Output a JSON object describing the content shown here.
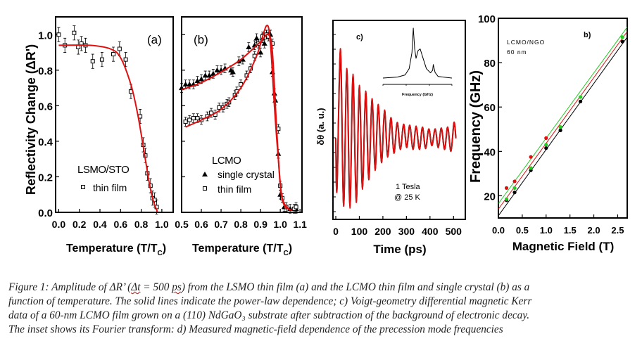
{
  "caption": {
    "line1_a": "Figure 1: Amplitude of ΔR’ (",
    "line1_dt": "Δt",
    "line1_b": " = 500 ",
    "line1_ps": "ps",
    "line1_c": ") from the LSMO thin film (a) and the LCMO thin film and single crystal (b) as a",
    "line2": "function of temperature. The solid lines indicate the power-law dependence; c) Voigt-geometry differential magnetic Kerr",
    "line3": "data of a 60-nm LCMO film grown on a (110) NdGaO₃ substrate after subtraction of the background of electronic decay.",
    "line4": "The inset shows its Fourier transform: d) Measured magnetic-field dependence of the precession mode frequencies"
  },
  "colors": {
    "fit": "#e01010",
    "data": "#000000",
    "green": "#22cc22",
    "red": "#e01010",
    "black": "#000000"
  },
  "chart_data": [
    {
      "type": "scatter",
      "panel_label": "(a)",
      "ylabel": "Reflectivity Change (ΔR')",
      "xlabel_main": "Temperature (T/T",
      "xlabel_sub": "C",
      "xlabel_end": ")",
      "annotation": "LSMO/STO",
      "xlim": [
        -0.03,
        1.11
      ],
      "ylim": [
        0.0,
        1.1
      ],
      "xticks": [
        "0.0",
        "0.2",
        "0.4",
        "0.6",
        "0.8",
        "1.0"
      ],
      "xtick_values": [
        0,
        0.2,
        0.4,
        0.6,
        0.8,
        1.0
      ],
      "yticks": [
        "0.0",
        "0.2",
        "0.4",
        "0.6",
        "0.8",
        "1.0"
      ],
      "ytick_values": [
        0,
        0.2,
        0.4,
        0.6,
        0.8,
        1.0
      ],
      "series": [
        {
          "name": "thin film",
          "marker": "open-square",
          "error_bar": 0.04,
          "x": [
            0.0,
            0.06,
            0.15,
            0.19,
            0.22,
            0.26,
            0.33,
            0.42,
            0.53,
            0.59,
            0.65,
            0.7,
            0.79,
            0.82,
            0.84,
            0.86,
            0.89,
            0.91,
            0.93,
            0.95
          ],
          "y": [
            1.0,
            0.94,
            1.01,
            0.93,
            0.95,
            0.94,
            0.85,
            0.86,
            0.89,
            0.92,
            0.86,
            0.68,
            0.54,
            0.38,
            0.32,
            0.22,
            0.15,
            0.08,
            0.07,
            0.03
          ]
        },
        {
          "fit": true,
          "x": [
            0,
            0.3,
            0.5,
            0.6,
            0.7,
            0.76,
            0.8,
            0.84,
            0.88,
            0.92,
            0.96
          ],
          "y": [
            0.94,
            0.94,
            0.92,
            0.87,
            0.72,
            0.57,
            0.44,
            0.3,
            0.16,
            0.06,
            0.0
          ]
        }
      ]
    },
    {
      "type": "scatter",
      "panel_label": "(b)",
      "xlabel_main": "Temperature (T/T",
      "xlabel_sub": "C",
      "xlabel_end": ")",
      "annotation": "LCMO",
      "xlim": [
        0.5,
        1.11
      ],
      "ylim": [
        0.0,
        1.1
      ],
      "xticks": [
        "0.5",
        "0.6",
        "0.7",
        "0.8",
        "0.9",
        "1.0",
        "1.1"
      ],
      "xtick_values": [
        0.5,
        0.6,
        0.7,
        0.8,
        0.9,
        1.0,
        1.1
      ],
      "ytick_values": [
        0,
        0.2,
        0.4,
        0.6,
        0.8,
        1.0
      ],
      "series": [
        {
          "name": "single crystal",
          "marker": "filled-triangle",
          "error_bar": 0.025,
          "x": [
            0.5,
            0.52,
            0.54,
            0.56,
            0.58,
            0.6,
            0.62,
            0.64,
            0.66,
            0.68,
            0.7,
            0.72,
            0.75,
            0.76,
            0.79,
            0.81,
            0.84,
            0.87,
            0.88,
            0.9,
            0.91,
            0.92,
            0.93,
            0.95,
            0.96,
            0.97,
            0.975,
            0.99,
            1.0,
            1.02,
            1.05,
            1.08
          ],
          "y": [
            0.7,
            0.72,
            0.72,
            0.72,
            0.74,
            0.75,
            0.77,
            0.77,
            0.78,
            0.8,
            0.8,
            0.81,
            0.8,
            0.79,
            0.85,
            0.86,
            0.93,
            0.94,
            0.98,
            0.9,
            0.98,
            0.95,
            1.0,
            1.0,
            0.79,
            0.67,
            0.63,
            0.33,
            0.1,
            0.03,
            0.02,
            0.02
          ]
        },
        {
          "name": "thin film",
          "marker": "open-square",
          "error_bar": 0.025,
          "x": [
            0.52,
            0.54,
            0.56,
            0.58,
            0.6,
            0.63,
            0.65,
            0.67,
            0.69,
            0.71,
            0.73,
            0.74,
            0.77,
            0.78,
            0.8,
            0.83,
            0.85,
            0.87,
            0.89,
            0.91,
            0.93,
            0.94,
            0.96,
            0.99,
            1.0,
            1.01,
            1.03,
            1.07,
            1.08
          ],
          "y": [
            0.51,
            0.52,
            0.53,
            0.53,
            0.52,
            0.54,
            0.56,
            0.55,
            0.59,
            0.59,
            0.61,
            0.62,
            0.66,
            0.68,
            0.72,
            0.77,
            0.81,
            0.88,
            0.95,
            0.99,
            1.0,
            0.99,
            0.95,
            0.47,
            0.15,
            0.08,
            0.03,
            0.02,
            0.03
          ]
        },
        {
          "fit": true,
          "x": [
            0.5,
            0.6,
            0.7,
            0.8,
            0.9,
            0.94,
            0.96,
            0.98,
            1.0,
            1.02,
            1.06
          ],
          "y": [
            0.69,
            0.73,
            0.79,
            0.86,
            0.96,
            1.0,
            0.9,
            0.5,
            0.15,
            0.04,
            0.01
          ]
        },
        {
          "fit": true,
          "x": [
            0.52,
            0.6,
            0.7,
            0.8,
            0.88,
            0.93,
            0.95,
            0.97,
            0.99,
            1.01,
            1.05
          ],
          "y": [
            0.48,
            0.52,
            0.58,
            0.7,
            0.88,
            1.05,
            0.95,
            0.6,
            0.3,
            0.08,
            0.01
          ]
        }
      ]
    },
    {
      "type": "line",
      "panel_label": "c)",
      "ylabel": "δθ (a. u.)",
      "xlabel": "Time (ps)",
      "annotation_1": "1 Tesla",
      "annotation_2": "@ 25 K",
      "xlim": [
        -12,
        550
      ],
      "ylim": [
        -0.86,
        1.25
      ],
      "xticks": [
        "0",
        "100",
        "200",
        "300",
        "400",
        "500"
      ],
      "xtick_values": [
        0,
        100,
        200,
        300,
        400,
        500
      ],
      "series": [
        {
          "fit": true,
          "x": [
            0,
            5,
            20,
            33,
            47,
            60,
            73,
            87,
            100,
            113,
            127,
            140,
            154,
            167,
            180,
            194,
            207,
            220,
            234,
            247,
            261,
            274,
            288,
            301,
            314,
            328,
            341,
            355,
            368,
            381,
            395,
            408,
            422,
            435,
            448,
            462,
            475,
            489,
            502,
            510
          ],
          "y": [
            0,
            -0.55,
            0.95,
            -0.72,
            0.74,
            -0.74,
            0.68,
            -0.68,
            0.56,
            -0.54,
            0.5,
            -0.44,
            0.42,
            -0.34,
            0.36,
            -0.26,
            0.3,
            -0.2,
            0.22,
            -0.16,
            0.17,
            -0.12,
            0.15,
            -0.1,
            0.14,
            -0.12,
            0.13,
            -0.12,
            0.12,
            -0.11,
            0.1,
            -0.08,
            0.1,
            -0.1,
            0.11,
            -0.12,
            0.12,
            -0.14,
            0.17,
            0.0
          ]
        }
      ]
    },
    {
      "type": "line",
      "inset": true,
      "xlabel": "Frequency (GHz)",
      "series": [
        {
          "x": [
            0,
            0.21,
            0.32,
            0.38,
            0.42,
            0.44,
            0.46,
            0.48,
            0.51,
            0.54,
            0.58,
            0.63,
            0.69,
            0.72,
            0.73,
            0.755,
            0.8,
            1.0
          ],
          "y": [
            0.04,
            0.06,
            0.1,
            0.22,
            0.53,
            1.0,
            0.6,
            0.42,
            0.57,
            0.6,
            0.43,
            0.22,
            0.14,
            0.19,
            0.3,
            0.15,
            0.07,
            0.04
          ]
        }
      ]
    },
    {
      "type": "scatter",
      "panel_label": "b)",
      "ylabel": "Frequency (GHz)",
      "xlabel": "Magnetic Field (T)",
      "annotation_1": "LCMO/NGO",
      "annotation_2": "60 nm",
      "xlim": [
        0,
        2.7
      ],
      "ylim": [
        10,
        100
      ],
      "xticks": [
        "0.0",
        "0.5",
        "1.0",
        "1.5",
        "2.0",
        "2.5"
      ],
      "xtick_values": [
        0,
        0.5,
        1.0,
        1.5,
        2.0,
        2.5
      ],
      "yticks": [
        "20",
        "40",
        "60",
        "80",
        "100"
      ],
      "ytick_values": [
        20,
        40,
        60,
        80,
        100
      ],
      "series": [
        {
          "color": "#000000",
          "x": [
            0.17,
            0.34,
            0.68,
            1.0,
            1.3,
            1.72,
            2.6
          ],
          "y": [
            18,
            21.5,
            31.5,
            41.5,
            49.5,
            62.5,
            89.5
          ],
          "line": [
            [
              0,
              11
            ],
            [
              2.7,
              91.5
            ]
          ]
        },
        {
          "color": "#22cc22",
          "x": [
            0.17,
            0.34,
            0.68,
            1.0,
            1.3,
            1.72,
            2.6
          ],
          "y": [
            18.5,
            23.5,
            32.5,
            43,
            51,
            64.5,
            91.5
          ],
          "line": [
            [
              0,
              16.5
            ],
            [
              2.7,
              96
            ]
          ]
        },
        {
          "color": "#e01010",
          "x": [
            0.17,
            0.34,
            0.68,
            1.0
          ],
          "y": [
            23.5,
            26.5,
            37.5,
            46
          ],
          "line": [
            [
              0,
              14
            ],
            [
              2.7,
              94
            ]
          ]
        }
      ]
    }
  ]
}
